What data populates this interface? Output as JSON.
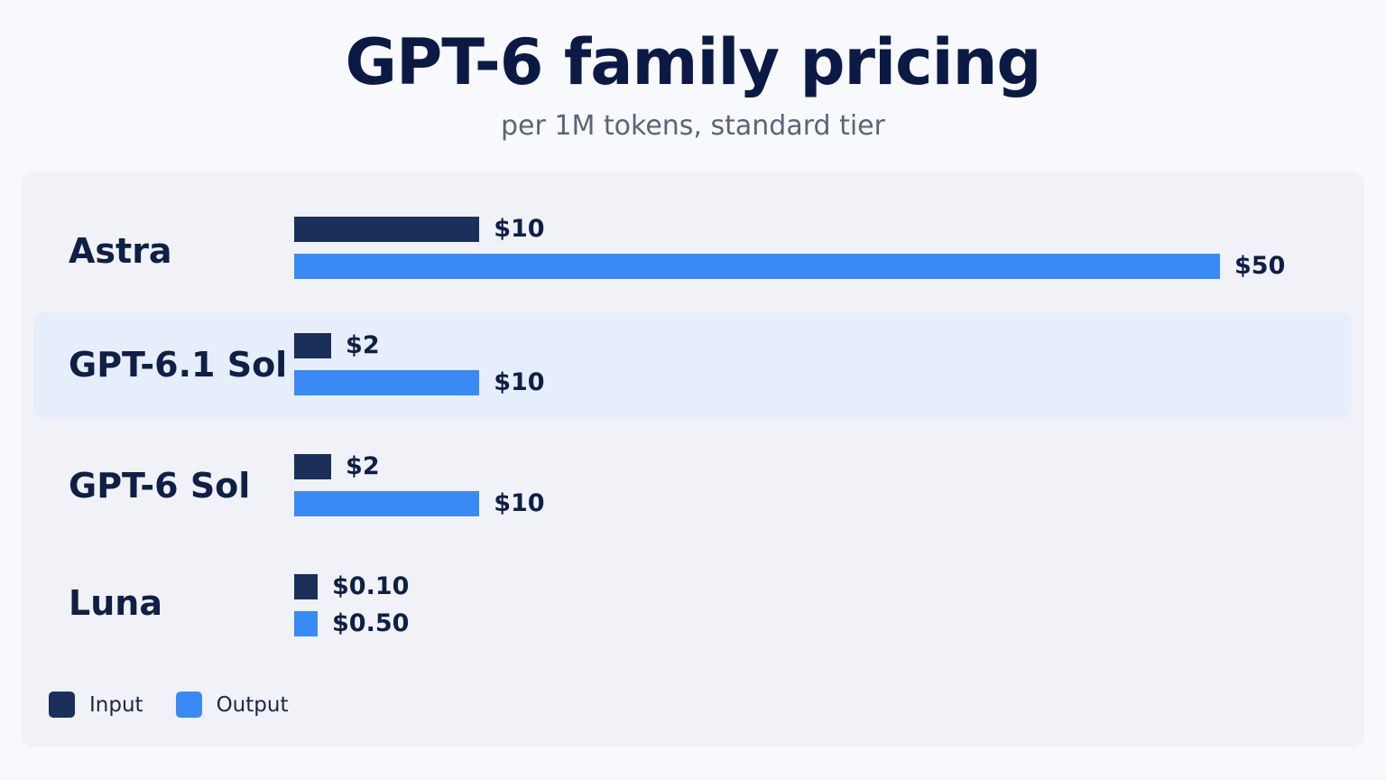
{
  "chart_data": {
    "type": "bar",
    "orientation": "horizontal",
    "title": "GPT-6 family pricing",
    "subtitle": "per 1M tokens, standard tier",
    "categories": [
      "Astra",
      "GPT-6.1 Sol",
      "GPT-6 Sol",
      "Luna"
    ],
    "series": [
      {
        "name": "Input",
        "values": [
          10,
          2,
          2,
          0.1
        ],
        "labels": [
          "$10",
          "$2",
          "$2",
          "$0.10"
        ],
        "color": "#1b2f5b"
      },
      {
        "name": "Output",
        "values": [
          50,
          10,
          10,
          0.5
        ],
        "labels": [
          "$50",
          "$10",
          "$10",
          "$0.50"
        ],
        "color": "#3a8af5"
      }
    ],
    "highlighted_category": "GPT-6.1 Sol",
    "grid": false,
    "legend": "bottom-left"
  }
}
